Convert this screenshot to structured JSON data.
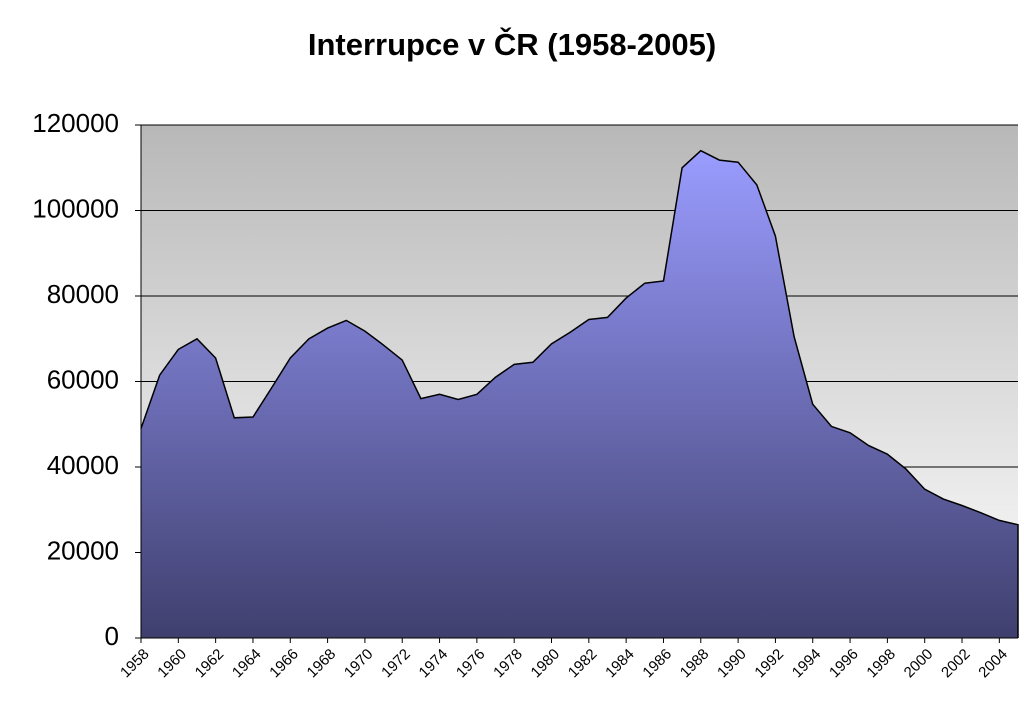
{
  "chart_data": {
    "type": "area",
    "title": "Interrupce v ČR (1958-2005)",
    "x": [
      1958,
      1959,
      1960,
      1961,
      1962,
      1963,
      1964,
      1965,
      1966,
      1967,
      1968,
      1969,
      1970,
      1971,
      1972,
      1973,
      1974,
      1975,
      1976,
      1977,
      1978,
      1979,
      1980,
      1981,
      1982,
      1983,
      1984,
      1985,
      1986,
      1987,
      1988,
      1989,
      1990,
      1991,
      1992,
      1993,
      1994,
      1995,
      1996,
      1997,
      1998,
      1999,
      2000,
      2001,
      2002,
      2003,
      2004,
      2005
    ],
    "values": [
      49000,
      61500,
      67500,
      70000,
      65500,
      51500,
      51700,
      58500,
      65500,
      70000,
      72500,
      74300,
      71800,
      68500,
      65000,
      56000,
      57000,
      55800,
      57000,
      61000,
      64000,
      64500,
      68800,
      71500,
      74500,
      75000,
      79500,
      83000,
      83500,
      110000,
      114000,
      111800,
      111300,
      106000,
      94000,
      70500,
      54700,
      49500,
      48000,
      45000,
      43000,
      39500,
      34800,
      32500,
      31000,
      29300,
      27500,
      26500
    ],
    "colors": [
      "#9a9cff",
      "#3f3f6e"
    ],
    "xlim": [
      1958,
      2005
    ],
    "xticks": [
      1958,
      1960,
      1962,
      1964,
      1966,
      1968,
      1970,
      1972,
      1974,
      1976,
      1978,
      1980,
      1982,
      1984,
      1986,
      1988,
      1990,
      1992,
      1994,
      1996,
      1998,
      2000,
      2002,
      2004
    ],
    "ylim": [
      0,
      120000
    ],
    "yticks": [
      0,
      20000,
      40000,
      60000,
      80000,
      100000,
      120000
    ],
    "grid": true
  }
}
